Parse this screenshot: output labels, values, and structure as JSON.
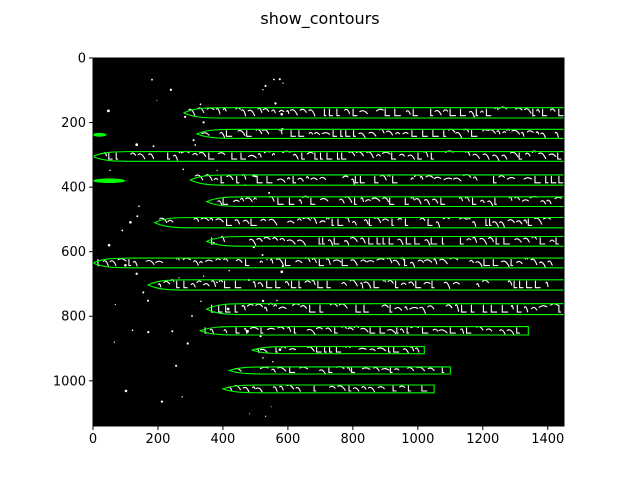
{
  "chart_data": {
    "type": "image",
    "title": "show_contours",
    "xlabel": "",
    "ylabel": "",
    "xlim": [
      0,
      1450
    ],
    "ylim": [
      1140,
      0
    ],
    "xticks": [
      0,
      200,
      400,
      600,
      800,
      1000,
      1200,
      1400
    ],
    "yticks": [
      0,
      200,
      400,
      600,
      800,
      1000
    ],
    "grid": false,
    "background_color": "#000000",
    "contour_color": "#00ff00",
    "text_color": "#ffffff",
    "contours": [
      {
        "x0": 280,
        "x1": 1450,
        "yc": 170,
        "h": 32
      },
      {
        "x0": 320,
        "x1": 1450,
        "yc": 235,
        "h": 28
      },
      {
        "x0": 0,
        "x1": 1450,
        "yc": 305,
        "h": 30
      },
      {
        "x0": 300,
        "x1": 1450,
        "yc": 378,
        "h": 32
      },
      {
        "x0": 350,
        "x1": 1450,
        "yc": 445,
        "h": 30
      },
      {
        "x0": 190,
        "x1": 1450,
        "yc": 510,
        "h": 32
      },
      {
        "x0": 350,
        "x1": 1450,
        "yc": 568,
        "h": 30
      },
      {
        "x0": 0,
        "x1": 1450,
        "yc": 635,
        "h": 30
      },
      {
        "x0": 170,
        "x1": 1450,
        "yc": 703,
        "h": 32
      },
      {
        "x0": 350,
        "x1": 1450,
        "yc": 778,
        "h": 34
      },
      {
        "x0": 330,
        "x1": 1340,
        "yc": 845,
        "h": 26
      },
      {
        "x0": 490,
        "x1": 1020,
        "yc": 905,
        "h": 22
      },
      {
        "x0": 420,
        "x1": 1100,
        "yc": 968,
        "h": 22
      },
      {
        "x0": 400,
        "x1": 1050,
        "yc": 1025,
        "h": 24
      }
    ],
    "small_blobs": [
      {
        "x": 20,
        "y": 238,
        "rx": 22,
        "ry": 6
      },
      {
        "x": 50,
        "y": 380,
        "rx": 50,
        "ry": 7
      }
    ]
  }
}
